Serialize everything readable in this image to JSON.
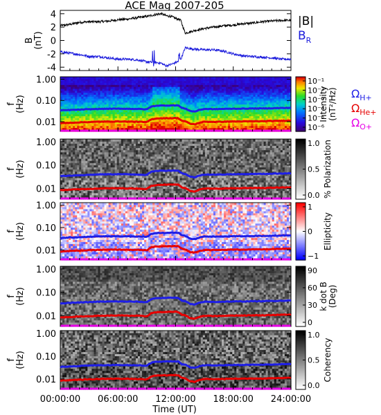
{
  "title": "ACE Mag 2007-205",
  "colors": {
    "B_total": "#000000",
    "B_R": "#1a1adc",
    "H_plus": "#1e1ee6",
    "He_plus": "#e60000",
    "O_plus": "#e600e6",
    "legend_text": "#1a1adc"
  },
  "chart_data": [
    {
      "type": "line",
      "panel": "magnetic-field",
      "ylabel": "B\n(nT)",
      "ylim": [
        -4.5,
        4.5
      ],
      "yticks": [
        "4",
        "2",
        "0",
        "-2",
        "-4"
      ],
      "series": [
        {
          "name": "|B|",
          "x": [
            0,
            1,
            2,
            3,
            4,
            5,
            6,
            7,
            8,
            9,
            10,
            10.5,
            11,
            11.5,
            12,
            12.5,
            13,
            14,
            15,
            16,
            17,
            18,
            19,
            20,
            21,
            22,
            23,
            24
          ],
          "values": [
            2.2,
            2.4,
            2.7,
            2.8,
            2.8,
            2.9,
            3.1,
            3.2,
            3.4,
            3.6,
            3.9,
            4.0,
            3.7,
            3.6,
            3.3,
            3.1,
            1.1,
            1.5,
            1.8,
            2.0,
            2.2,
            2.3,
            2.5,
            2.6,
            2.8,
            2.9,
            3.0,
            3.0
          ]
        },
        {
          "name": "B_R",
          "x": [
            0,
            1,
            2,
            3,
            4,
            5,
            6,
            7,
            8,
            9,
            10,
            10.5,
            11,
            11.5,
            12,
            12.5,
            13,
            14,
            15,
            16,
            17,
            18,
            19,
            20,
            21,
            22,
            23,
            24
          ],
          "values": [
            -1.7,
            -1.9,
            -2.1,
            -2.4,
            -2.4,
            -2.6,
            -2.8,
            -2.8,
            -2.9,
            -3.2,
            -3.3,
            -3.4,
            -3.8,
            -3.6,
            -3.3,
            -3.0,
            -1.1,
            -1.3,
            -1.4,
            -1.4,
            -1.6,
            -2.0,
            -2.3,
            -2.4,
            -2.5,
            -2.6,
            -2.8,
            -2.8
          ]
        }
      ],
      "legend": [
        "|B|",
        "B_R"
      ]
    },
    {
      "type": "heatmap",
      "panel": "intensity",
      "ylabel": "f\n(Hz)",
      "yticks": [
        "1.00",
        "0.10",
        "0.01"
      ],
      "colorbar": {
        "label": "Intensity\n(nT²/Hz)",
        "ticks": [
          "10⁻¹",
          "10⁻²",
          "10⁻³",
          "10⁻⁴",
          "10⁻⁵",
          "10⁻⁶"
        ],
        "scale": "rainbow"
      },
      "legend": [
        "ΩH+",
        "ΩHe+",
        "ΩO+"
      ]
    },
    {
      "type": "heatmap",
      "panel": "polarization",
      "ylabel": "f\n(Hz)",
      "yticks": [
        "1.00",
        "0.10",
        "0.01"
      ],
      "colorbar": {
        "label": "% Polarization",
        "ticks": [
          "1.0",
          "0.5",
          "0.0"
        ],
        "scale": "gray"
      }
    },
    {
      "type": "heatmap",
      "panel": "ellipticity",
      "ylabel": "f\n(Hz)",
      "yticks": [
        "1.00",
        "0.10",
        "0.01"
      ],
      "colorbar": {
        "label": "Ellipticity",
        "ticks": [
          "1",
          "0",
          "−1"
        ],
        "scale": "red-white-blue"
      }
    },
    {
      "type": "heatmap",
      "panel": "k-dot-b",
      "ylabel": "f\n(Hz)",
      "yticks": [
        "1.00",
        "0.10",
        "0.01"
      ],
      "colorbar": {
        "label": "k dot B\n(Deg)",
        "ticks": [
          "90",
          "60",
          "30",
          "0"
        ],
        "scale": "gray"
      }
    },
    {
      "type": "heatmap",
      "panel": "coherency",
      "ylabel": "f\n(Hz)",
      "yticks": [
        "1.00",
        "0.10",
        "0.01"
      ],
      "colorbar": {
        "label": "Coherency",
        "ticks": [
          "1.0",
          "0.5",
          "0.0"
        ],
        "scale": "gray"
      }
    }
  ],
  "gyro_lines": {
    "x": [
      0,
      2,
      4,
      6,
      8,
      9,
      9.5,
      10,
      11,
      12,
      12.3,
      12.6,
      13,
      13.5,
      14,
      14.5,
      15,
      16,
      17,
      18,
      19,
      20,
      21,
      22,
      23,
      24
    ],
    "H_plus": [
      0.034,
      0.037,
      0.04,
      0.041,
      0.04,
      0.038,
      0.052,
      0.057,
      0.058,
      0.059,
      0.058,
      0.045,
      0.042,
      0.032,
      0.03,
      0.036,
      0.04,
      0.039,
      0.04,
      0.041,
      0.041,
      0.042,
      0.042,
      0.043,
      0.044,
      0.045
    ],
    "He_plus": [
      0.0085,
      0.0093,
      0.01,
      0.0103,
      0.01,
      0.0095,
      0.013,
      0.0143,
      0.0145,
      0.0148,
      0.0145,
      0.0113,
      0.0105,
      0.008,
      0.0075,
      0.009,
      0.01,
      0.0098,
      0.01,
      0.0103,
      0.0103,
      0.0105,
      0.0105,
      0.0108,
      0.011,
      0.0113
    ],
    "O_plus": [
      0.0021,
      0.0023,
      0.0025,
      0.0026,
      0.0025,
      0.0024,
      0.0033,
      0.0036,
      0.0036,
      0.0037,
      0.0036,
      0.0028,
      0.0026,
      0.002,
      0.0019,
      0.0023,
      0.0025,
      0.0025,
      0.0025,
      0.0026,
      0.0026,
      0.0026,
      0.0026,
      0.0027,
      0.0028,
      0.0028
    ]
  },
  "x_axis": {
    "label": "Time (UT)",
    "ticks": [
      "00:00:00",
      "06:00:00",
      "12:00:00",
      "18:00:00",
      "24:00:00"
    ],
    "range": [
      0,
      24
    ]
  },
  "legend_top": {
    "b_total": "|B|",
    "b_r_main": "B",
    "b_r_sub": "R"
  },
  "legend_ions": [
    {
      "main": "Ω",
      "sub": "H+"
    },
    {
      "main": "Ω",
      "sub": "He+"
    },
    {
      "main": "Ω",
      "sub": "O+"
    }
  ]
}
